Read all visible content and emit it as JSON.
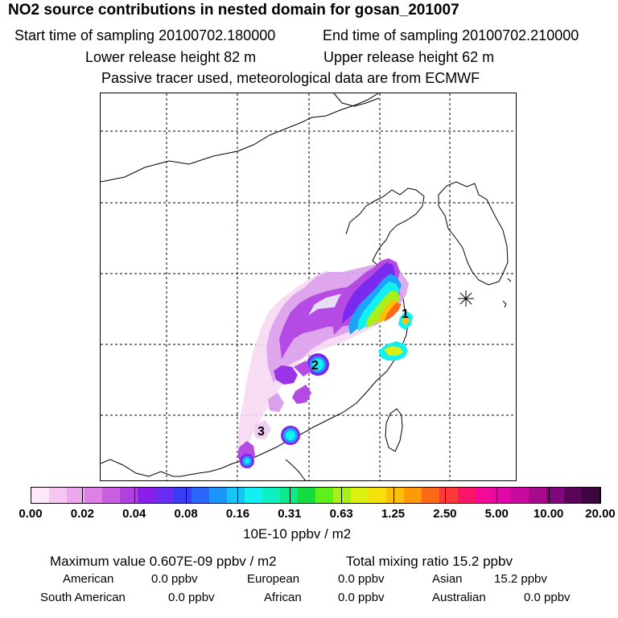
{
  "header": {
    "title": "NO2 source contributions in nested domain for gosan_201007",
    "start_label": "Start time of sampling 20100702.180000",
    "end_label": "End time of sampling 20100702.210000",
    "lower_label": "Lower release height   82 m",
    "upper_label": "Upper release height   62 m",
    "tracer_note": "Passive tracer used, meteorological data are from ECMWF"
  },
  "map": {
    "receptor_icon": "asterisk-icon",
    "source_labels": [
      "1",
      "2",
      "3"
    ]
  },
  "colorbar": {
    "colors": [
      "#fde8fb",
      "#f6c6f3",
      "#eea6ee",
      "#df80e6",
      "#c85fde",
      "#b040e0",
      "#8c1eea",
      "#6a2cf0",
      "#3b3cf5",
      "#2a66fa",
      "#1c95fb",
      "#18c4f5",
      "#12f0f2",
      "#0ef0c4",
      "#0ee88a",
      "#14dc40",
      "#5ef01a",
      "#a8f01a",
      "#dcf010",
      "#f6e00c",
      "#fcc00a",
      "#fc9a08",
      "#fc6a18",
      "#fc3838",
      "#fc1468",
      "#f40a98",
      "#e00aa8",
      "#c80aa0",
      "#a80a8c",
      "#80087a",
      "#5a0658",
      "#3c0640"
    ],
    "ticks": [
      "0.00",
      "0.02",
      "0.04",
      "0.08",
      "0.16",
      "0.31",
      "0.63",
      "1.25",
      "2.50",
      "5.00",
      "10.00",
      "20.00"
    ],
    "units": "10E-10 ppbv / m2"
  },
  "stats": {
    "max_value": "Maximum value  0.607E-09 ppbv / m2",
    "total_mixing": "Total mixing ratio       15.2 ppbv",
    "american": "American",
    "american_val": "0.0 ppbv",
    "european": "European",
    "european_val": "0.0 ppbv",
    "asian": "Asian",
    "asian_val": "15.2 ppbv",
    "south_american": "South American",
    "south_american_val": "0.0 ppbv",
    "african": "African",
    "african_val": "0.0 ppbv",
    "australian": "Australian",
    "australian_val": "0.0 ppbv"
  }
}
